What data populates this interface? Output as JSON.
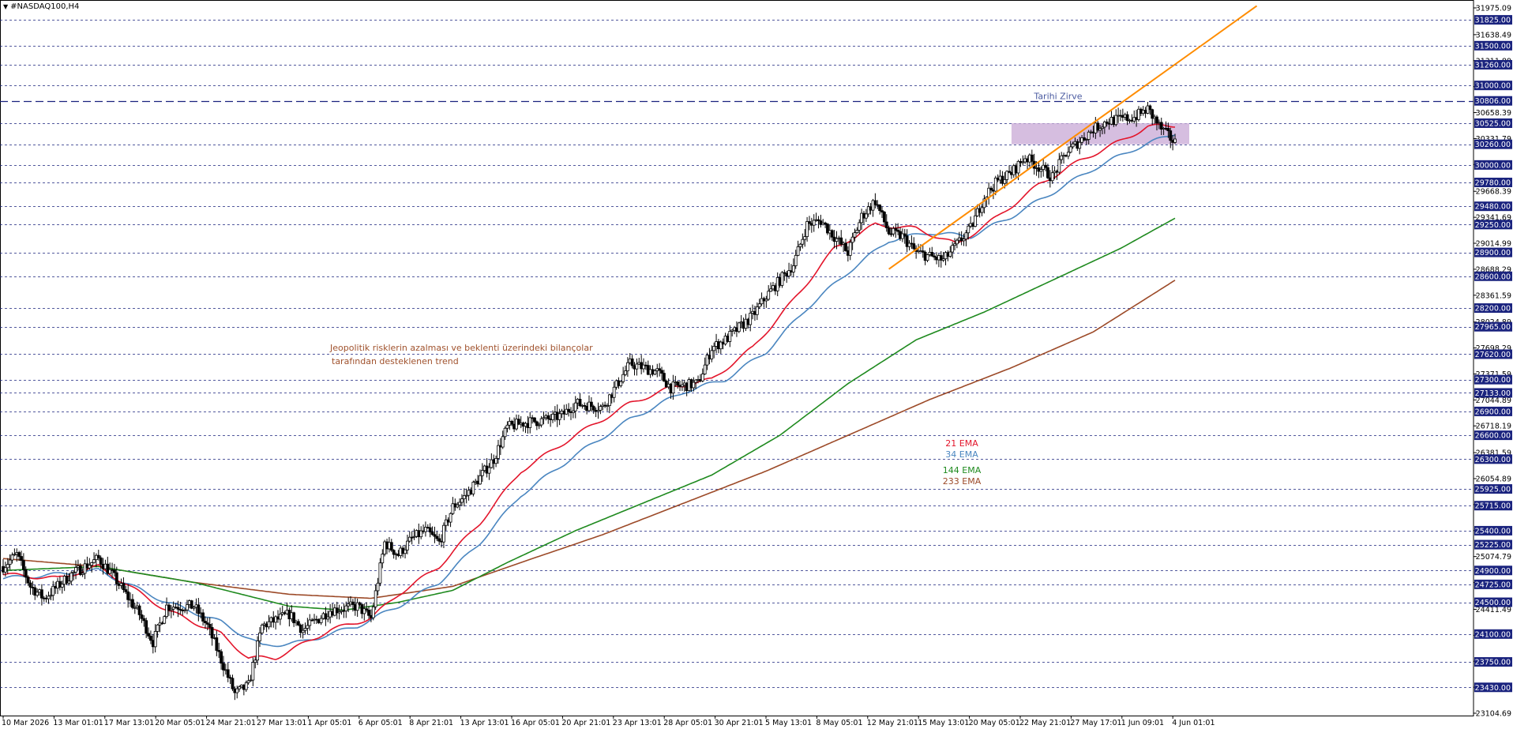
{
  "header": {
    "symbol": "#NASDAQ100,H4",
    "menu_icon": "triangle-down-icon"
  },
  "colors": {
    "background": "#ffffff",
    "grid": "#1a237e",
    "candles": "#000000",
    "ema21": "#e3152b",
    "ema34": "#4a86c0",
    "ema144": "#1f8a1f",
    "ema233": "#9c4a28",
    "trendline": "#ff8c00",
    "resistance_zone": "#c8a8d6",
    "price_tag_bg": "#1a237e",
    "annotation_text": "#a0522d",
    "zirve_text": "#4a5aa0"
  },
  "chart_data": {
    "type": "candlestick",
    "instrument": "#NASDAQ100",
    "timeframe": "H4",
    "ylim": [
      23104.69,
      31975.09
    ],
    "x_range": [
      "10 Mar 2026",
      "4 Jun 01:01"
    ],
    "x_tick_labels": [
      "10 Mar 2026",
      "13 Mar 01:01",
      "17 Mar 13:01",
      "20 Mar 05:01",
      "24 Mar 21:01",
      "27 Mar 13:01",
      "1 Apr 05:01",
      "6 Apr 05:01",
      "8 Apr 21:01",
      "13 Apr 13:01",
      "16 Apr 05:01",
      "20 Apr 21:01",
      "23 Apr 13:01",
      "28 Apr 05:01",
      "30 Apr 21:01",
      "5 May 13:01",
      "8 May 05:01",
      "12 May 21:01",
      "15 May 13:01",
      "20 May 05:01",
      "22 May 21:01",
      "27 May 17:01",
      "1 Jun 09:01",
      "4 Jun 01:01"
    ],
    "y_tick_labels": [
      "31975.09",
      "31638.49",
      "31311.89",
      "30985.29",
      "30658.39",
      "30331.79",
      "30005.19",
      "29668.39",
      "29341.69",
      "29014.99",
      "28688.29",
      "28361.59",
      "28024.89",
      "27698.29",
      "27371.59",
      "27044.89",
      "26718.19",
      "26381.59",
      "26054.89",
      "25728.19",
      "25401.49",
      "25074.79",
      "24748.09",
      "24411.49",
      "24084.79",
      "23758.09",
      "23431.39",
      "23104.69"
    ],
    "horizontal_levels": [
      31825.0,
      31500.0,
      31260.0,
      31000.0,
      30806.0,
      30525.0,
      30260.0,
      30000.0,
      29780.0,
      29480.0,
      29250.0,
      28900.0,
      28600.0,
      28200.0,
      27965.0,
      27620.0,
      27300.0,
      27133.0,
      26900.0,
      26600.0,
      26300.0,
      25925.0,
      25715.0,
      25400.0,
      25225.0,
      24900.0,
      24725.0,
      24500.0,
      24100.0,
      23750.0,
      23430.0
    ],
    "all_time_high": {
      "label": "Tarihi Zirve",
      "price": 30806.0
    },
    "resistance_zone": {
      "from": 30260.0,
      "to": 30525.0,
      "x_start": "23 May 2026",
      "x_end": "4 Jun 2026"
    },
    "trendline": {
      "from": {
        "date": "14 May 2026",
        "price": 28690
      },
      "to": {
        "date": "10 Jun 2026",
        "price": 32000
      }
    },
    "annotation": [
      "Jeopolitik risklerin azalması ve beklenti üzerindeki bilançolar",
      "tarafından desteklenen trend"
    ],
    "legend": [
      {
        "name": "21 EMA",
        "color": "#e3152b"
      },
      {
        "name": "34 EMA",
        "color": "#4a86c0"
      },
      {
        "name": "144 EMA",
        "color": "#1f8a1f"
      },
      {
        "name": "233 EMA",
        "color": "#9c4a28"
      }
    ],
    "price_path": [
      [
        "10 Mar 2026",
        24950
      ],
      [
        "11 Mar 2026",
        25100
      ],
      [
        "12 Mar 2026",
        24700
      ],
      [
        "13 Mar 2026",
        24550
      ],
      [
        "15 Mar 2026",
        24850
      ],
      [
        "17 Mar 2026",
        25050
      ],
      [
        "18 Mar 2026",
        24850
      ],
      [
        "20 Mar 2026",
        24350
      ],
      [
        "21 Mar 2026",
        24000
      ],
      [
        "22 Mar 2026",
        24450
      ],
      [
        "24 Mar 2026",
        24450
      ],
      [
        "25 Mar 2026",
        24200
      ],
      [
        "27 Mar 2026",
        23350
      ],
      [
        "28 Mar 2026",
        23450
      ],
      [
        "29 Mar 2026",
        24200
      ],
      [
        "31 Mar 2026",
        24350
      ],
      [
        "1 Apr 2026",
        24150
      ],
      [
        "3 Apr 2026",
        24400
      ],
      [
        "5 Apr 2026",
        24450
      ],
      [
        "6 Apr 2026",
        24300
      ],
      [
        "7 Apr 2026",
        25250
      ],
      [
        "8 Apr 2026",
        25100
      ],
      [
        "9 Apr 2026",
        25300
      ],
      [
        "10 Apr 2026",
        25400
      ],
      [
        "11 Apr 2026",
        25250
      ],
      [
        "12 Apr 2026",
        25700
      ],
      [
        "13 Apr 2026",
        25850
      ],
      [
        "15 Apr 2026",
        26300
      ],
      [
        "16 Apr 2026",
        26700
      ],
      [
        "17 Apr 2026",
        26750
      ],
      [
        "19 Apr 2026",
        26800
      ],
      [
        "20 Apr 2026",
        26850
      ],
      [
        "21 Apr 2026",
        27000
      ],
      [
        "23 Apr 2026",
        26950
      ],
      [
        "25 Apr 2026",
        27500
      ],
      [
        "27 Apr 2026",
        27400
      ],
      [
        "28 Apr 2026",
        27200
      ],
      [
        "30 Apr 2026",
        27250
      ],
      [
        "1 May 2026",
        27700
      ],
      [
        "2 May 2026",
        27800
      ],
      [
        "4 May 2026",
        28100
      ],
      [
        "5 May 2026",
        28350
      ],
      [
        "7 May 2026",
        28750
      ],
      [
        "8 May 2026",
        29250
      ],
      [
        "9 May 2026",
        29300
      ],
      [
        "10 May 2026",
        29100
      ],
      [
        "11 May 2026",
        28900
      ],
      [
        "12 May 2026",
        29350
      ],
      [
        "13 May 2026",
        29550
      ],
      [
        "14 May 2026",
        29150
      ],
      [
        "15 May 2026",
        29100
      ],
      [
        "16 May 2026",
        28900
      ],
      [
        "18 May 2026",
        28800
      ],
      [
        "19 May 2026",
        29000
      ],
      [
        "20 May 2026",
        29200
      ],
      [
        "21 May 2026",
        29600
      ],
      [
        "22 May 2026",
        29800
      ],
      [
        "23 May 2026",
        29900
      ],
      [
        "24 May 2026",
        30100
      ],
      [
        "26 May 2026",
        29850
      ],
      [
        "27 May 2026",
        30150
      ],
      [
        "28 May 2026",
        30300
      ],
      [
        "29 May 2026",
        30450
      ],
      [
        "30 May 2026",
        30550
      ],
      [
        "1 Jun 2026",
        30600
      ],
      [
        "2 Jun 2026",
        30700
      ],
      [
        "3 Jun 2026",
        30450
      ],
      [
        "4 Jun 2026",
        30280
      ]
    ],
    "ema21": [
      [
        "10 Mar 2026",
        24850
      ],
      [
        "14 Mar 2026",
        24800
      ],
      [
        "17 Mar 2026",
        24950
      ],
      [
        "22 Mar 2026",
        24400
      ],
      [
        "26 Mar 2026",
        24100
      ],
      [
        "28 Mar 2026",
        23800
      ],
      [
        "30 Mar 2026",
        23800
      ],
      [
        "3 Apr 2026",
        24150
      ],
      [
        "6 Apr 2026",
        24300
      ],
      [
        "8 Apr 2026",
        24600
      ],
      [
        "11 Apr 2026",
        24950
      ],
      [
        "14 Apr 2026",
        25500
      ],
      [
        "17 Apr 2026",
        26150
      ],
      [
        "21 Apr 2026",
        26600
      ],
      [
        "25 Apr 2026",
        27000
      ],
      [
        "28 Apr 2026",
        27200
      ],
      [
        "1 May 2026",
        27300
      ],
      [
        "4 May 2026",
        27700
      ],
      [
        "7 May 2026",
        28300
      ],
      [
        "10 May 2026",
        28950
      ],
      [
        "13 May 2026",
        29250
      ],
      [
        "16 May 2026",
        29200
      ],
      [
        "19 May 2026",
        29000
      ],
      [
        "22 May 2026",
        29350
      ],
      [
        "25 May 2026",
        29750
      ],
      [
        "28 May 2026",
        30050
      ],
      [
        "31 May 2026",
        30300
      ],
      [
        "2 Jun 2026",
        30480
      ],
      [
        "4 Jun 2026",
        30500
      ]
    ],
    "ema34": [
      [
        "10 Mar 2026",
        24800
      ],
      [
        "14 Mar 2026",
        24850
      ],
      [
        "17 Mar 2026",
        24900
      ],
      [
        "22 Mar 2026",
        24500
      ],
      [
        "26 Mar 2026",
        24250
      ],
      [
        "29 Mar 2026",
        23950
      ],
      [
        "1 Apr 2026",
        24000
      ],
      [
        "5 Apr 2026",
        24200
      ],
      [
        "8 Apr 2026",
        24450
      ],
      [
        "11 Apr 2026",
        24750
      ],
      [
        "14 Apr 2026",
        25250
      ],
      [
        "17 Apr 2026",
        25850
      ],
      [
        "21 Apr 2026",
        26350
      ],
      [
        "25 Apr 2026",
        26800
      ],
      [
        "29 Apr 2026",
        27150
      ],
      [
        "2 May 2026",
        27300
      ],
      [
        "5 May 2026",
        27650
      ],
      [
        "8 May 2026",
        28200
      ],
      [
        "11 May 2026",
        28650
      ],
      [
        "14 May 2026",
        29050
      ],
      [
        "17 May 2026",
        29150
      ],
      [
        "20 May 2026",
        29100
      ],
      [
        "23 May 2026",
        29350
      ],
      [
        "26 May 2026",
        29650
      ],
      [
        "29 May 2026",
        29950
      ],
      [
        "1 Jun 2026",
        30200
      ],
      [
        "4 Jun 2026",
        30400
      ]
    ],
    "ema144": [
      [
        "10 Mar 2026",
        24900
      ],
      [
        "17 Mar 2026",
        24950
      ],
      [
        "24 Mar 2026",
        24750
      ],
      [
        "31 Mar 2026",
        24450
      ],
      [
        "4 Apr 2026",
        24400
      ],
      [
        "8 Apr 2026",
        24500
      ],
      [
        "12 Apr 2026",
        24650
      ],
      [
        "16 Apr 2026",
        25000
      ],
      [
        "21 Apr 2026",
        25400
      ],
      [
        "26 Apr 2026",
        25750
      ],
      [
        "1 May 2026",
        26100
      ],
      [
        "6 May 2026",
        26600
      ],
      [
        "11 May 2026",
        27250
      ],
      [
        "16 May 2026",
        27800
      ],
      [
        "21 May 2026",
        28150
      ],
      [
        "26 May 2026",
        28550
      ],
      [
        "31 May 2026",
        28950
      ],
      [
        "4 Jun 2026",
        29330
      ]
    ],
    "ema233": [
      [
        "10 Mar 2026",
        25050
      ],
      [
        "17 Mar 2026",
        24950
      ],
      [
        "24 Mar 2026",
        24750
      ],
      [
        "31 Mar 2026",
        24600
      ],
      [
        "6 Apr 2026",
        24550
      ],
      [
        "12 Apr 2026",
        24700
      ],
      [
        "17 Apr 2026",
        25000
      ],
      [
        "23 Apr 2026",
        25350
      ],
      [
        "29 Apr 2026",
        25750
      ],
      [
        "5 May 2026",
        26150
      ],
      [
        "11 May 2026",
        26600
      ],
      [
        "17 May 2026",
        27050
      ],
      [
        "23 May 2026",
        27450
      ],
      [
        "29 May 2026",
        27900
      ],
      [
        "4 Jun 2026",
        28550
      ]
    ]
  }
}
